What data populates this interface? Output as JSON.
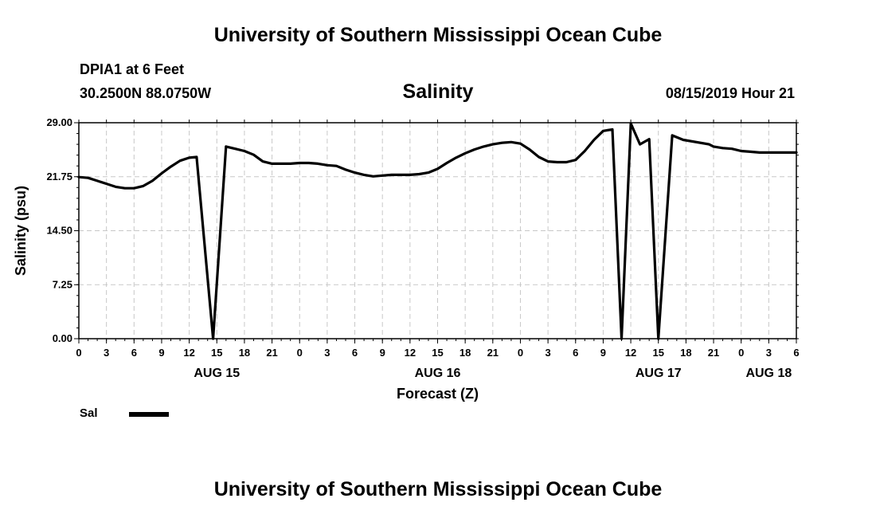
{
  "header": {
    "title": "University of Southern Mississippi Ocean Cube",
    "station": "DPIA1 at 6 Feet",
    "coords": "30.2500N 88.0750W",
    "chart_title": "Salinity",
    "timestamp": "08/15/2019 Hour 21"
  },
  "footer": {
    "title": "University of Southern Mississippi Ocean Cube"
  },
  "legend": {
    "label": "Sal",
    "color": "#000000"
  },
  "chart_data": {
    "type": "line",
    "title": "Salinity",
    "xlabel": "Forecast (Z)",
    "ylabel": "Salinity (psu)",
    "ylim": [
      0,
      29
    ],
    "xlim": [
      0,
      78
    ],
    "x_unit": "hours from AUG 15 00Z",
    "grid": true,
    "legend_position": "bottom-left",
    "y_ticks": [
      "0.00",
      "7.25",
      "14.50",
      "21.75",
      "29.00"
    ],
    "y_tick_values": [
      0,
      7.25,
      14.5,
      21.75,
      29
    ],
    "x_tick_labels": [
      "0",
      "3",
      "6",
      "9",
      "12",
      "15",
      "18",
      "21",
      "0",
      "3",
      "6",
      "9",
      "12",
      "15",
      "18",
      "21",
      "0",
      "3",
      "6",
      "9",
      "12",
      "15",
      "18",
      "21",
      "0",
      "3",
      "6"
    ],
    "date_labels": [
      {
        "hour": 15,
        "label": "AUG 15"
      },
      {
        "hour": 39,
        "label": "AUG 16"
      },
      {
        "hour": 63,
        "label": "AUG 17"
      },
      {
        "hour": 75,
        "label": "AUG 18"
      }
    ],
    "series": [
      {
        "name": "Sal",
        "color": "#000000",
        "x": [
          0,
          1,
          2,
          3,
          4,
          5,
          6,
          7,
          8,
          9,
          10,
          11,
          12,
          12.8,
          14.6,
          16,
          17,
          18,
          19,
          20,
          21,
          22,
          23,
          24,
          25,
          26,
          27,
          28,
          29,
          30,
          31,
          32,
          33,
          34,
          35,
          36,
          37,
          38,
          39,
          40,
          41,
          42,
          43,
          44,
          45,
          46,
          47,
          48,
          49,
          50,
          51,
          52,
          53,
          54,
          55,
          56,
          57,
          58,
          59,
          60,
          61,
          62,
          63,
          64.5,
          65.7,
          68.5,
          69,
          70,
          71,
          72,
          73,
          74,
          75,
          76,
          77,
          78
        ],
        "y": [
          21.7,
          21.6,
          21.2,
          20.8,
          20.4,
          20.2,
          20.2,
          20.5,
          21.2,
          22.2,
          23.1,
          23.9,
          24.3,
          24.4,
          0,
          25.8,
          25.5,
          25.2,
          24.7,
          23.8,
          23.5,
          23.5,
          23.5,
          23.6,
          23.6,
          23.5,
          23.3,
          23.2,
          22.7,
          22.3,
          22.0,
          21.8,
          21.9,
          22.0,
          22.0,
          22.0,
          22.1,
          22.3,
          22.8,
          23.6,
          24.3,
          24.9,
          25.4,
          25.8,
          26.1,
          26.3,
          26.4,
          26.2,
          25.4,
          24.4,
          23.8,
          23.7,
          23.7,
          24.0,
          25.2,
          26.7,
          27.9,
          28.1,
          0,
          28.9,
          26.1,
          26.8,
          0,
          27.3,
          26.7,
          26.1,
          25.8,
          25.6,
          25.5,
          25.2,
          25.1,
          25.0,
          25.0,
          25.0,
          25.0,
          25.0
        ]
      }
    ]
  }
}
